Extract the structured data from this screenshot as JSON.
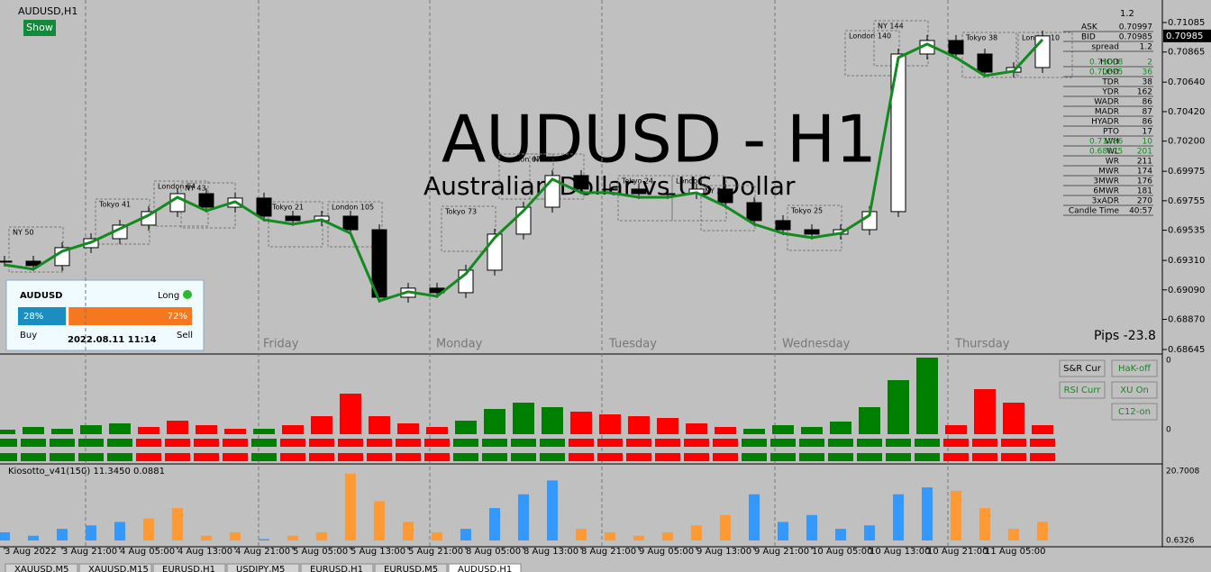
{
  "window": {
    "title": "AUDUSD,H1",
    "show_button": "Show"
  },
  "watermark": {
    "symbol": "AUDUSD - H1",
    "description": "Australian Dollar vs US Dollar"
  },
  "price_axis": {
    "ylim": [
      0.68645,
      0.71085
    ],
    "ticks": [
      0.71085,
      0.70865,
      {
        "value": 0.7064,
        "label": "0.70640"
      },
      {
        "value": 0.7042,
        "label": "0.70420"
      },
      {
        "value": 0.702,
        "label": "0.70200"
      },
      0.69975,
      0.69755,
      0.69535,
      {
        "value": 0.6931,
        "label": "0.69310"
      },
      {
        "value": 0.6909,
        "label": "0.69090"
      },
      {
        "value": 0.6887,
        "label": "0.68870"
      },
      0.68645
    ],
    "current": 0.70985
  },
  "time_axis": [
    "3 Aug 2022",
    "3 Aug 21:00",
    "4 Aug 05:00",
    "4 Aug 13:00",
    "4 Aug 21:00",
    "5 Aug 05:00",
    "5 Aug 13:00",
    "5 Aug 21:00",
    "8 Aug 05:00",
    "8 Aug 13:00",
    "8 Aug 21:00",
    "9 Aug 05:00",
    "9 Aug 13:00",
    "9 Aug 21:00",
    "10 Aug 05:00",
    "10 Aug 13:00",
    "10 Aug 21:00",
    "11 Aug 05:00"
  ],
  "days": [
    "Friday",
    "Monday",
    "Tuesday",
    "Wednesday",
    "Thursday"
  ],
  "sessions": [
    "NY 50",
    "Tokyo 41",
    "London 64",
    "NY 43",
    "Tokyo 21",
    "London 105",
    "Tokyo 73",
    "London 67",
    "NY 43",
    "Tokyo 24",
    "London",
    "NY 24",
    "Tokyo 25",
    "London 140",
    "NY 144",
    "Tokyo 38",
    "London 10"
  ],
  "closes": [
    0.69304,
    0.69271,
    0.69405,
    0.69472,
    0.69573,
    0.69674,
    0.69808,
    0.69707,
    0.69775,
    0.6964,
    0.69607,
    0.6964,
    0.69539,
    0.69035,
    0.69103,
    0.69069,
    0.69237,
    0.69506,
    0.69707,
    0.69943,
    0.69842,
    0.69842,
    0.69808,
    0.69808,
    0.69842,
    0.69741,
    0.69607,
    0.69539,
    0.69506,
    0.69539,
    0.69674,
    0.7085,
    0.70951,
    0.7085,
    0.70715,
    0.70749,
    0.70985
  ],
  "info_panel": {
    "top": "1.2",
    "rows": [
      [
        "ASK",
        "0.70997"
      ],
      [
        "BID",
        "0.70985"
      ],
      [
        "spread",
        "1.2"
      ],
      [
        "HOD",
        "0.71008",
        "2"
      ],
      [
        "LOD",
        "0.70625",
        "36"
      ],
      [
        "TDR",
        "38"
      ],
      [
        "YDR",
        "162"
      ],
      [
        "WADR",
        "86"
      ],
      [
        "MADR",
        "87"
      ],
      [
        "HYADR",
        "86"
      ],
      [
        "PTO",
        "17"
      ],
      [
        "WH",
        "0.71086",
        "10"
      ],
      [
        "WL",
        "0.68975",
        "201"
      ],
      [
        "WR",
        "211"
      ],
      [
        "MWR",
        "174"
      ],
      [
        "3MWR",
        "176"
      ],
      [
        "6MWR",
        "181"
      ],
      [
        "3xADR",
        "270"
      ],
      [
        "Candle Time",
        "40:57"
      ]
    ]
  },
  "pips": "Pips -23.8",
  "buttons": [
    "S&R Cur",
    "HaK-off",
    "RSI Curr",
    "XU On",
    "C12-on"
  ],
  "sentiment": {
    "symbol": "AUDUSD",
    "direction": "Long",
    "buy": {
      "value": 28,
      "label": "28%"
    },
    "sell": {
      "value": 72,
      "label": "72%"
    },
    "buy_text": "Buy",
    "sell_text": "Sell",
    "time": "2022.08.11 11:14"
  },
  "strength": {
    "zero_label": "0",
    "values": [
      5,
      8,
      6,
      10,
      12,
      -8,
      -15,
      -10,
      -6,
      6,
      -10,
      -20,
      -45,
      -20,
      -12,
      -8,
      15,
      28,
      35,
      30,
      -25,
      -22,
      -20,
      -18,
      -12,
      -8,
      6,
      10,
      8,
      14,
      30,
      60,
      85,
      -10,
      -50,
      -35,
      -10
    ]
  },
  "kiosotto": {
    "label": "Kiosotto_v41(150) 11.3450 0.0881",
    "ylim": [
      0.6326,
      20.7008
    ],
    "ticks": [
      20.7008,
      0.6326
    ],
    "values": [
      3,
      2,
      4,
      5,
      6,
      7,
      10,
      2,
      3,
      1,
      2,
      3,
      20,
      12,
      6,
      3,
      4,
      10,
      14,
      18,
      4,
      3,
      2,
      3,
      5,
      8,
      14,
      6,
      8,
      4,
      5,
      14,
      16,
      15,
      10,
      4,
      6
    ]
  },
  "tabs": [
    "XAUUSD,M5",
    "XAUUSD,M15",
    "EURUSD,H1",
    "USDJPY,M5",
    "EURUSD,H1",
    "EURUSD,M5",
    "AUDUSD,H1"
  ]
}
